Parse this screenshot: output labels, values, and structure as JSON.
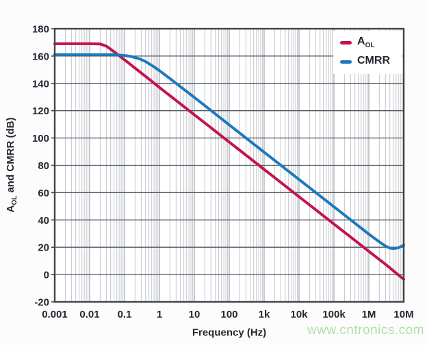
{
  "figure": {
    "background": "#fcfcfd",
    "text_color": "#23272f"
  },
  "chart_data": {
    "type": "line",
    "x_scale": "log",
    "title": "",
    "xlabel": "Frequency (Hz)",
    "ylabel": "AOL and CMRR (dB)",
    "xlim": [
      0.001,
      10000000
    ],
    "ylim": [
      -20,
      180
    ],
    "x_tick_values": [
      0.001,
      0.01,
      0.1,
      1,
      10,
      100,
      1000,
      10000,
      100000,
      1000000,
      10000000
    ],
    "x_tick_labels": [
      "0.001",
      "0.01",
      "0.1",
      "1",
      "10",
      "100",
      "1k",
      "10k",
      "100k",
      "1M",
      "10M"
    ],
    "y_ticks": [
      -20,
      0,
      20,
      40,
      60,
      80,
      100,
      120,
      140,
      160,
      180
    ],
    "grid": {
      "horizontal_major": true,
      "vertical_major": true,
      "vertical_log_minor": true,
      "minor_color": "#c2c5cb",
      "major_vertical_color": "#989da6",
      "major_horizontal_color": "#51565f",
      "border_color": "#3f444d"
    },
    "legend_position": "top-right",
    "series": [
      {
        "name": "AOL",
        "color": "#c3134f",
        "points": [
          [
            0.001,
            169
          ],
          [
            0.01,
            169
          ],
          [
            0.02,
            168.8
          ],
          [
            0.03,
            167.3
          ],
          [
            0.05,
            163.2
          ],
          [
            0.08,
            159.1
          ],
          [
            0.12,
            155.7
          ],
          [
            0.2,
            151.2
          ],
          [
            0.5,
            143.2
          ],
          [
            1,
            137.0
          ],
          [
            3,
            127.5
          ],
          [
            10,
            117.0
          ],
          [
            30,
            107.5
          ],
          [
            100,
            97.0
          ],
          [
            300,
            87.5
          ],
          [
            1000,
            77.0
          ],
          [
            3000,
            67.5
          ],
          [
            10000,
            57.0
          ],
          [
            30000,
            47.5
          ],
          [
            100000,
            37.0
          ],
          [
            300000,
            27.5
          ],
          [
            1000000,
            17.0
          ],
          [
            3000000,
            7.5
          ],
          [
            10000000,
            -3.5
          ]
        ]
      },
      {
        "name": "CMRR",
        "color": "#1e78bc",
        "points": [
          [
            0.001,
            161
          ],
          [
            0.05,
            161
          ],
          [
            0.1,
            160.4
          ],
          [
            0.15,
            159.8
          ],
          [
            0.27,
            158.0
          ],
          [
            0.4,
            156.0
          ],
          [
            0.7,
            152.1
          ],
          [
            1,
            149.3
          ],
          [
            2,
            143.5
          ],
          [
            5,
            135.7
          ],
          [
            10,
            129.7
          ],
          [
            30,
            120.2
          ],
          [
            100,
            109.6
          ],
          [
            300,
            100.1
          ],
          [
            1000,
            89.6
          ],
          [
            3000,
            80.1
          ],
          [
            10000,
            69.6
          ],
          [
            30000,
            60.1
          ],
          [
            100000,
            49.6
          ],
          [
            300000,
            40.1
          ],
          [
            1000000,
            29.6
          ],
          [
            2000000,
            23.9
          ],
          [
            3000000,
            20.9
          ],
          [
            4000000,
            19.4
          ],
          [
            5000000,
            19.0
          ],
          [
            7000000,
            19.6
          ],
          [
            10000000,
            21.5
          ]
        ]
      }
    ]
  },
  "axis_titles": {
    "x": "Frequency (Hz)",
    "y": {
      "pre": "A",
      "sub": "OL",
      "post": " and CMRR (dB)"
    }
  },
  "legend": {
    "items": [
      {
        "base": "A",
        "sub": "OL"
      },
      {
        "base": "CMRR",
        "sub": ""
      }
    ]
  },
  "watermark": {
    "text": "www.cntronics.com",
    "color": "#b2dfa6"
  }
}
